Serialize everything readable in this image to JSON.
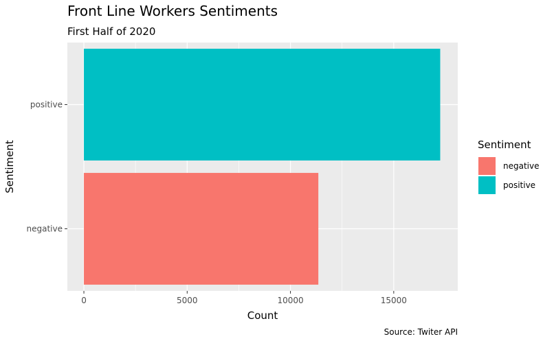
{
  "chart_data": {
    "type": "bar",
    "orientation": "horizontal",
    "title": "Front Line Workers Sentiments",
    "subtitle": "First Half of 2020",
    "xlabel": "Count",
    "ylabel": "Sentiment",
    "caption": "Source: Twiter API",
    "categories": [
      "negative",
      "positive"
    ],
    "values": [
      11350,
      17250
    ],
    "colors": [
      "#F8766D",
      "#00BFC4"
    ],
    "xlim": [
      -800,
      18100
    ],
    "xticks": [
      0,
      5000,
      10000,
      15000
    ],
    "xtick_labels": [
      "0",
      "5000",
      "10000",
      "15000"
    ],
    "grid": true,
    "panel_background": "#EBEBEB",
    "legend": {
      "title": "Sentiment",
      "position": "right",
      "entries": [
        "negative",
        "positive"
      ]
    }
  }
}
